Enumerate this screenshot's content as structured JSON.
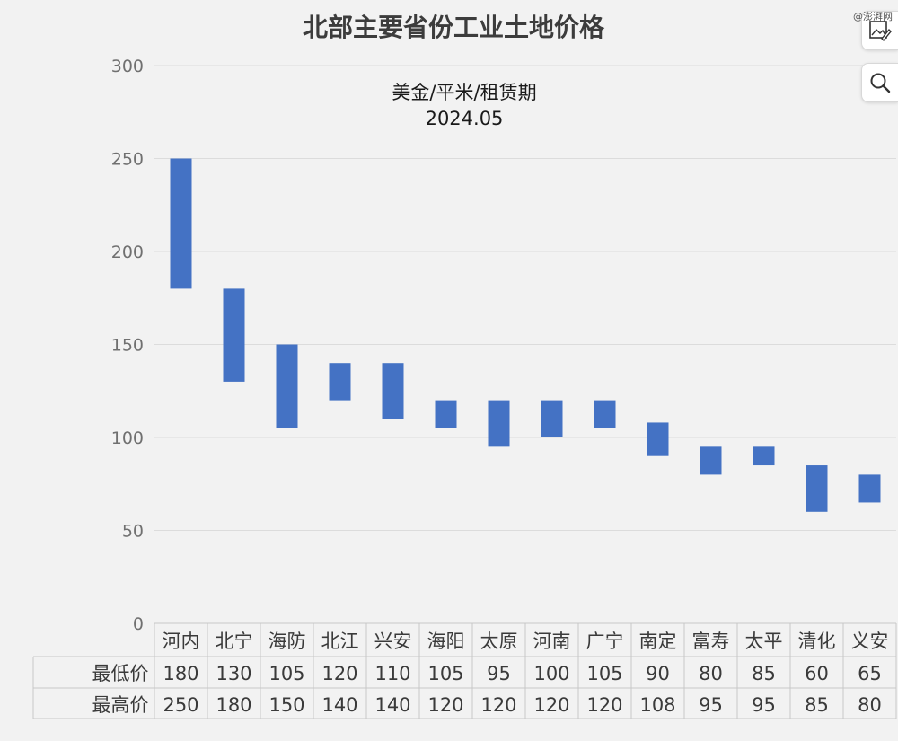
{
  "chart_data": {
    "type": "bar",
    "subtype": "floating-range",
    "title": "北部主要省份工业土地价格",
    "subtitle_line1": "美金/平米/租赁期",
    "subtitle_line2": "2024.05",
    "categories": [
      "河内",
      "北宁",
      "海防",
      "北江",
      "兴安",
      "海阳",
      "太原",
      "河南",
      "广宁",
      "南定",
      "富寿",
      "太平",
      "清化",
      "义安"
    ],
    "series": [
      {
        "name": "最低价",
        "values": [
          180,
          130,
          105,
          120,
          110,
          105,
          95,
          100,
          105,
          90,
          80,
          85,
          60,
          65
        ]
      },
      {
        "name": "最高价",
        "values": [
          250,
          180,
          150,
          140,
          140,
          120,
          120,
          120,
          120,
          108,
          95,
          95,
          85,
          80
        ]
      }
    ],
    "yticks": [
      0,
      50,
      100,
      150,
      200,
      250,
      300
    ],
    "ylim": [
      0,
      300
    ],
    "grid": true,
    "bar_color": "#4472c4",
    "data_table": true
  },
  "watermark": "@澎湃网"
}
